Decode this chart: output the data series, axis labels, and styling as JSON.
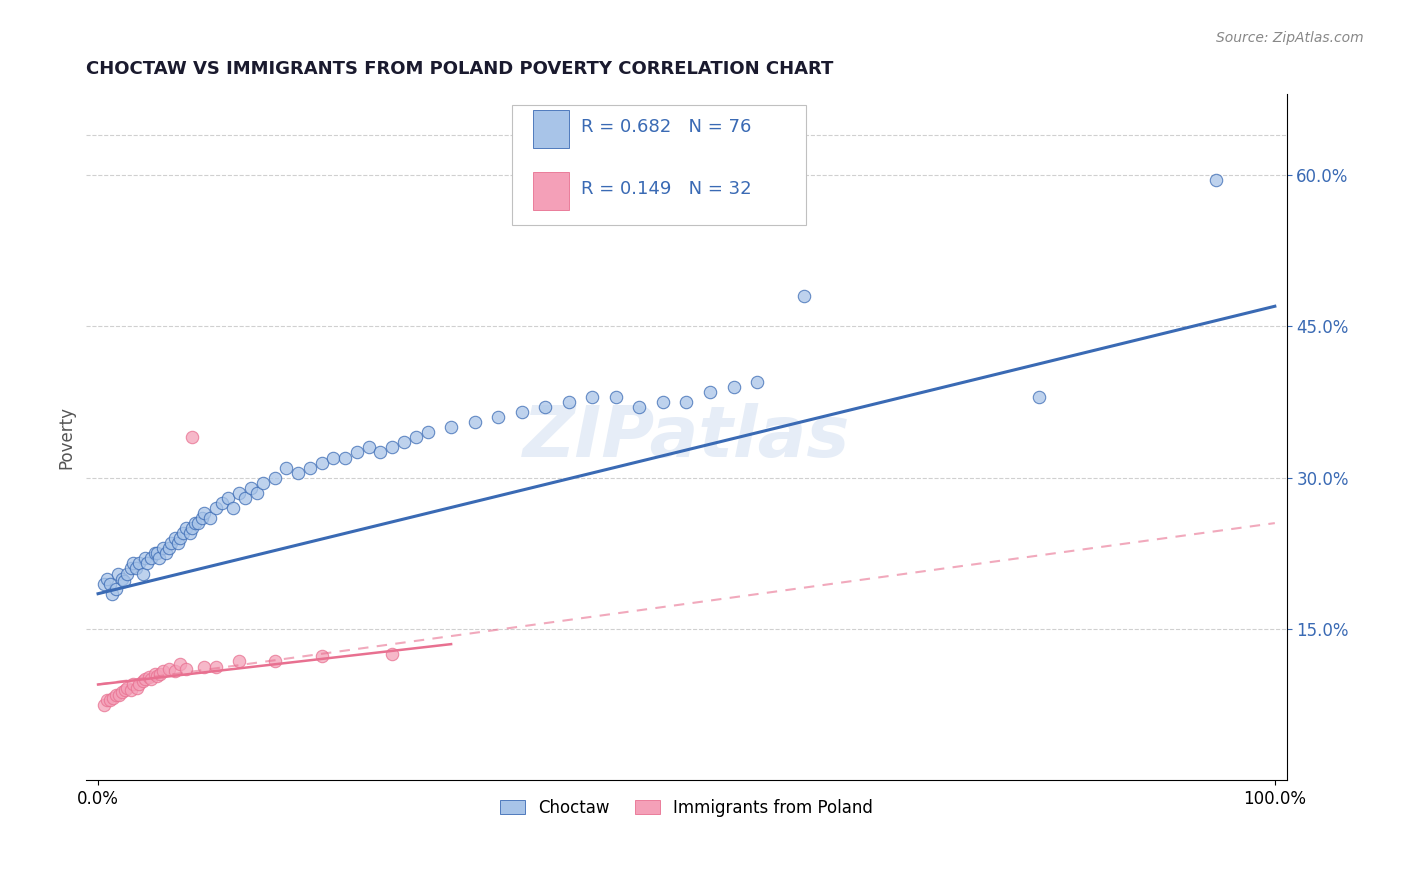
{
  "title": "CHOCTAW VS IMMIGRANTS FROM POLAND POVERTY CORRELATION CHART",
  "source": "Source: ZipAtlas.com",
  "ylabel": "Poverty",
  "watermark": "ZIPatlas",
  "legend_label1": "Choctaw",
  "legend_label2": "Immigrants from Poland",
  "x_tick_labels": [
    "0.0%",
    "100.0%"
  ],
  "y_tick_labels_right": [
    "15.0%",
    "30.0%",
    "45.0%",
    "60.0%"
  ],
  "y_ticks_right": [
    0.15,
    0.3,
    0.45,
    0.6
  ],
  "color_choctaw": "#a8c4e8",
  "color_poland": "#f4a0b8",
  "color_line_choctaw": "#3a6ab4",
  "color_line_poland": "#e87090",
  "background_color": "#ffffff",
  "grid_color": "#d0d0d0",
  "choctaw_x": [
    0.005,
    0.008,
    0.01,
    0.012,
    0.015,
    0.017,
    0.02,
    0.022,
    0.025,
    0.028,
    0.03,
    0.032,
    0.035,
    0.038,
    0.04,
    0.042,
    0.045,
    0.048,
    0.05,
    0.052,
    0.055,
    0.058,
    0.06,
    0.062,
    0.065,
    0.068,
    0.07,
    0.072,
    0.075,
    0.078,
    0.08,
    0.082,
    0.085,
    0.088,
    0.09,
    0.095,
    0.1,
    0.105,
    0.11,
    0.115,
    0.12,
    0.125,
    0.13,
    0.135,
    0.14,
    0.15,
    0.16,
    0.17,
    0.18,
    0.19,
    0.2,
    0.21,
    0.22,
    0.23,
    0.24,
    0.25,
    0.26,
    0.27,
    0.28,
    0.3,
    0.32,
    0.34,
    0.36,
    0.38,
    0.4,
    0.42,
    0.44,
    0.46,
    0.48,
    0.5,
    0.52,
    0.54,
    0.56,
    0.6,
    0.8,
    0.95
  ],
  "choctaw_y": [
    0.195,
    0.2,
    0.195,
    0.185,
    0.19,
    0.205,
    0.2,
    0.198,
    0.205,
    0.21,
    0.215,
    0.21,
    0.215,
    0.205,
    0.22,
    0.215,
    0.22,
    0.225,
    0.225,
    0.22,
    0.23,
    0.225,
    0.23,
    0.235,
    0.24,
    0.235,
    0.24,
    0.245,
    0.25,
    0.245,
    0.25,
    0.255,
    0.255,
    0.26,
    0.265,
    0.26,
    0.27,
    0.275,
    0.28,
    0.27,
    0.285,
    0.28,
    0.29,
    0.285,
    0.295,
    0.3,
    0.31,
    0.305,
    0.31,
    0.315,
    0.32,
    0.32,
    0.325,
    0.33,
    0.325,
    0.33,
    0.335,
    0.34,
    0.345,
    0.35,
    0.355,
    0.36,
    0.365,
    0.37,
    0.375,
    0.38,
    0.38,
    0.37,
    0.375,
    0.375,
    0.385,
    0.39,
    0.395,
    0.48,
    0.38,
    0.595
  ],
  "poland_x": [
    0.005,
    0.008,
    0.01,
    0.013,
    0.015,
    0.018,
    0.02,
    0.023,
    0.025,
    0.028,
    0.03,
    0.033,
    0.035,
    0.038,
    0.04,
    0.043,
    0.045,
    0.048,
    0.05,
    0.053,
    0.055,
    0.06,
    0.065,
    0.07,
    0.075,
    0.08,
    0.09,
    0.1,
    0.12,
    0.15,
    0.19,
    0.25
  ],
  "poland_y": [
    0.075,
    0.08,
    0.08,
    0.082,
    0.085,
    0.085,
    0.088,
    0.09,
    0.092,
    0.09,
    0.095,
    0.092,
    0.095,
    0.098,
    0.1,
    0.102,
    0.1,
    0.105,
    0.103,
    0.105,
    0.108,
    0.11,
    0.108,
    0.115,
    0.11,
    0.34,
    0.112,
    0.112,
    0.118,
    0.118,
    0.123,
    0.125
  ]
}
